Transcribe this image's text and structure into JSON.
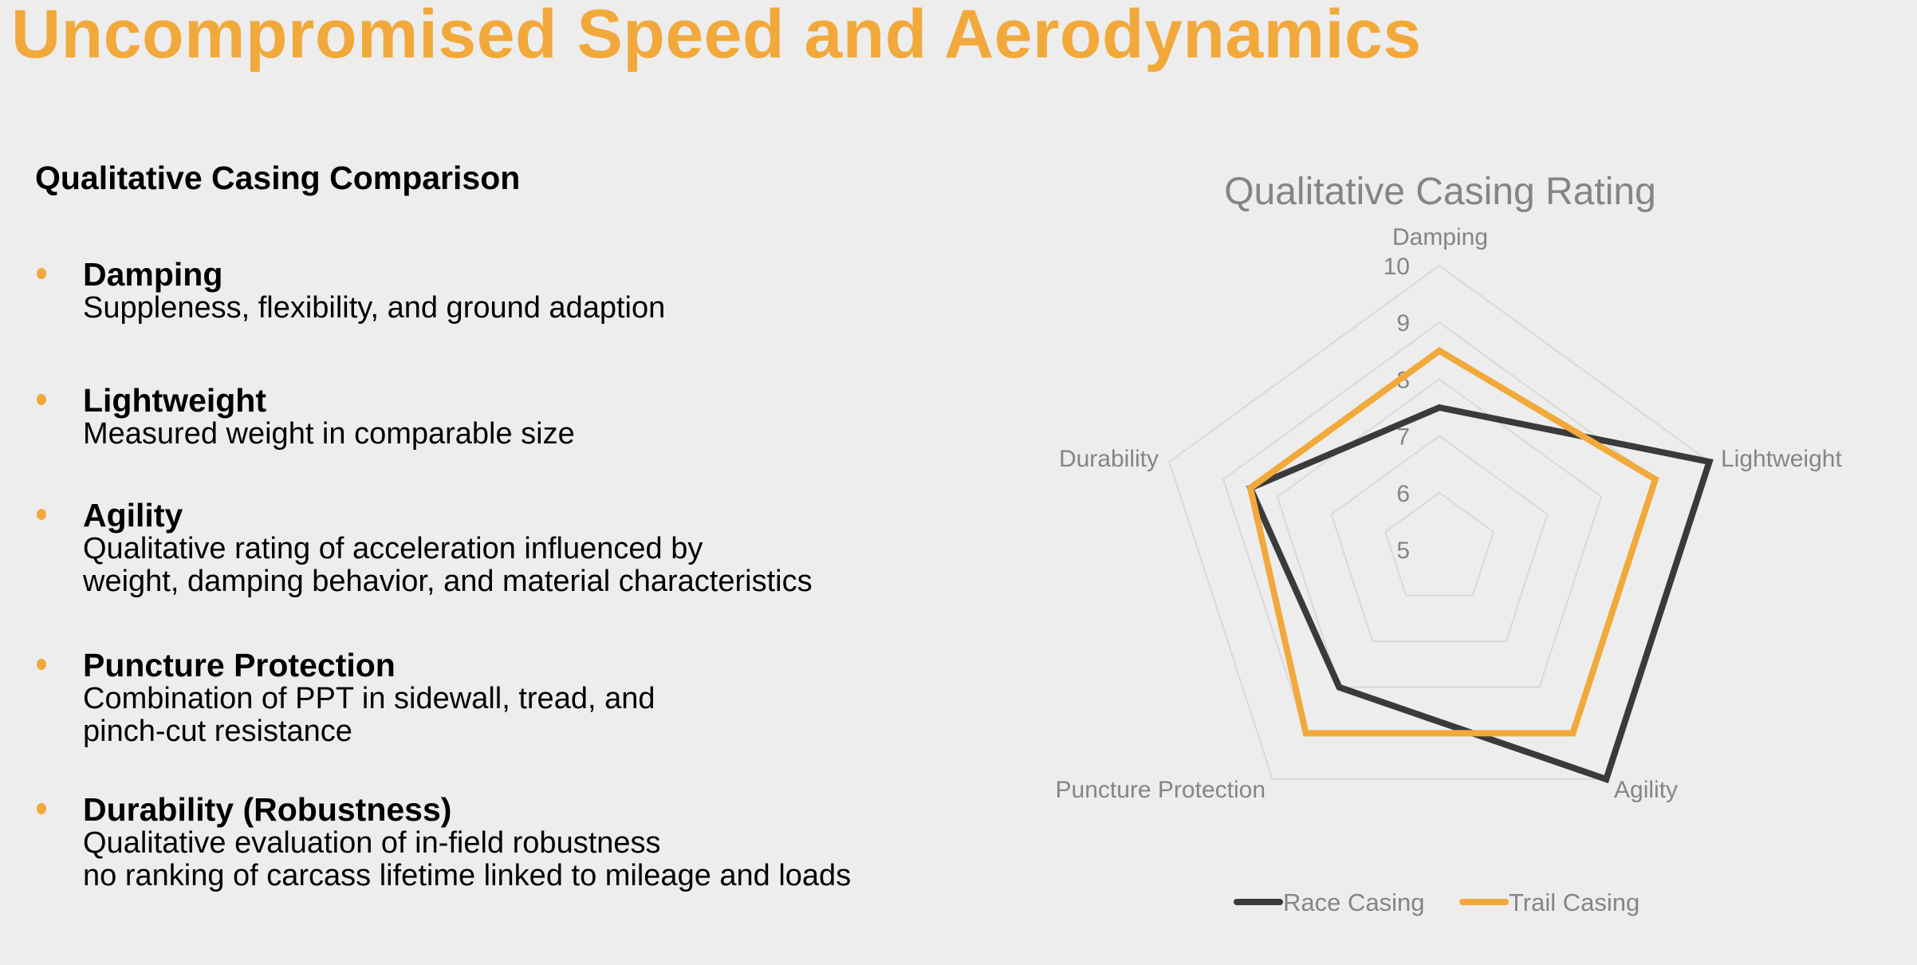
{
  "page": {
    "title": "Uncompromised Speed and Aerodynamics",
    "subtitle": "Qualitative Casing Comparison",
    "items": [
      {
        "heading": "Damping",
        "lines": [
          "Suppleness, flexibility, and ground adaption"
        ]
      },
      {
        "heading": "Lightweight",
        "lines": [
          "Measured weight in comparable size"
        ]
      },
      {
        "heading": "Agility",
        "lines": [
          "Qualitative rating of acceleration influenced by",
          "weight, damping behavior, and material characteristics"
        ]
      },
      {
        "heading": "Puncture Protection",
        "lines": [
          "Combination of PPT in sidewall, tread, and",
          "pinch-cut resistance"
        ]
      },
      {
        "heading": "Durability (Robustness)",
        "lines": [
          "Qualitative evaluation of in-field robustness",
          "no ranking of carcass lifetime linked to mileage and loads"
        ]
      }
    ]
  },
  "colors": {
    "accent": "#f2a93b",
    "race": "#3a3a3a",
    "text_gray": "#858585",
    "background": "#ededed",
    "grid": "#d9d9d9"
  },
  "chart_data": {
    "type": "radar",
    "title": "Qualitative Casing Rating",
    "categories": [
      "Damping",
      "Lightweight",
      "Agility",
      "Puncture Protection",
      "Durability"
    ],
    "rlim": [
      5,
      10
    ],
    "ticks": [
      "5",
      "6",
      "7",
      "8",
      "9",
      "10"
    ],
    "grid": true,
    "legend": "bottom",
    "series": [
      {
        "name": "Race Casing",
        "color": "#3a3a3a",
        "values": [
          7.5,
          10,
          10,
          8,
          8.5
        ]
      },
      {
        "name": "Trail Casing",
        "color": "#f2a93b",
        "values": [
          8.5,
          9,
          9,
          9,
          8.5
        ]
      }
    ]
  }
}
